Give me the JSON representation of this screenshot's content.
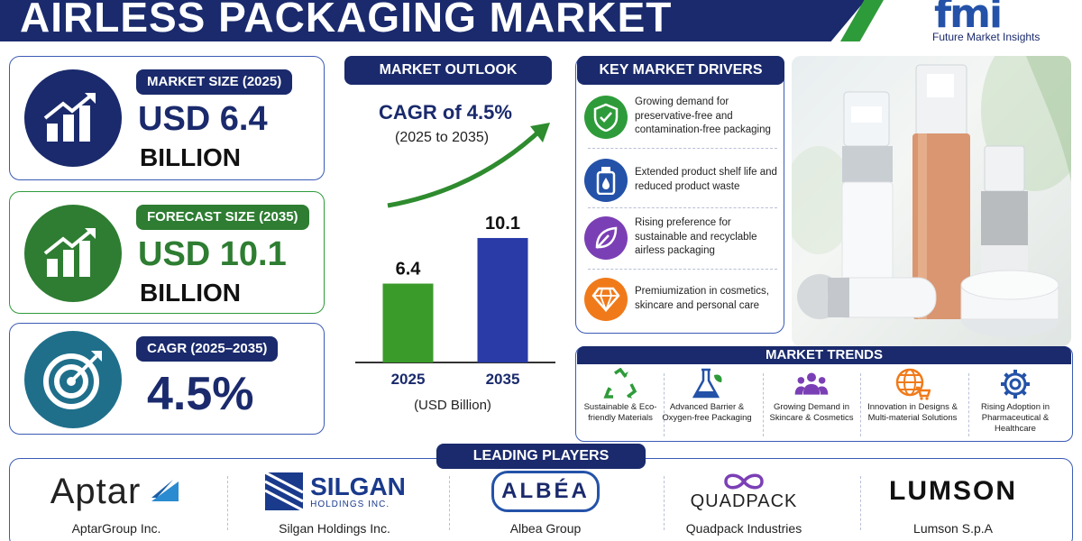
{
  "header": {
    "title": "AIRLESS PACKAGING MARKET",
    "logo_mark": "fmi",
    "logo_text": "Future Market Insights"
  },
  "stats": {
    "market_size": {
      "label": "MARKET SIZE (2025)",
      "value": "USD 6.4",
      "unit": "BILLION"
    },
    "forecast_size": {
      "label": "FORECAST SIZE (2035)",
      "value": "USD 10.1",
      "unit": "BILLION"
    },
    "cagr": {
      "label": "CAGR (2025–2035)",
      "value": "4.5%"
    }
  },
  "outlook": {
    "title": "MARKET OUTLOOK",
    "cagr_text": "CAGR of 4.5%",
    "cagr_range": "(2025 to 2035)",
    "unit_label": "(USD Billion)"
  },
  "chart_data": {
    "type": "bar",
    "categories": [
      "2025",
      "2035"
    ],
    "values": [
      6.4,
      10.1
    ],
    "value_labels": [
      "6.4",
      "10.1"
    ],
    "colors": [
      "#3a9a2a",
      "#2a3ba8"
    ],
    "xlabel": "(USD Billion)",
    "ylim": [
      0,
      12
    ]
  },
  "drivers": {
    "title": "KEY MARKET DRIVERS",
    "items": [
      {
        "text": "Growing demand for preservative-free and contamination-free packaging",
        "icon": "shield-check-icon",
        "color": "#2e9b3a"
      },
      {
        "text": "Extended product shelf life and reduced product waste",
        "icon": "bottle-drop-icon",
        "color": "#2452a8"
      },
      {
        "text": "Rising preference for sustainable and recyclable airless packaging",
        "icon": "leaf-icon",
        "color": "#7b3fb5"
      },
      {
        "text": "Premiumization in cosmetics, skincare and personal care",
        "icon": "diamond-icon",
        "color": "#f07a1a"
      }
    ]
  },
  "trends": {
    "title": "MARKET TRENDS",
    "items": [
      {
        "label": "Sustainable & Eco-friendly Materials",
        "icon": "recycle-icon",
        "color": "#2e9b3a"
      },
      {
        "label": "Advanced Barrier & Oxygen-free Packaging",
        "icon": "flask-icon",
        "color": "#2452a8"
      },
      {
        "label": "Growing Demand in Skincare & Cosmetics",
        "icon": "people-icon",
        "color": "#7b3fb5"
      },
      {
        "label": "Innovation in Designs & Multi-material Solutions",
        "icon": "globe-cart-icon",
        "color": "#f07a1a"
      },
      {
        "label": "Rising Adoption in Pharmaceutical & Healthcare",
        "icon": "gear-icon",
        "color": "#2452a8"
      }
    ]
  },
  "players": {
    "title": "LEADING PLAYERS",
    "items": [
      {
        "logo": "Aptar",
        "name": "AptarGroup Inc."
      },
      {
        "logo": "SILGAN",
        "logo_sub": "HOLDINGS INC.",
        "name": "Silgan Holdings Inc."
      },
      {
        "logo": "ALBÉA",
        "name": "Albea Group"
      },
      {
        "logo": "QUADPACK",
        "name": "Quadpack Industries"
      },
      {
        "logo": "LUMSON",
        "name": "Lumson S.p.A"
      }
    ]
  },
  "colors": {
    "navy": "#1a2a6c",
    "green": "#2e9b3a",
    "blue": "#3b5bb5",
    "teal": "#1f6f8b"
  }
}
